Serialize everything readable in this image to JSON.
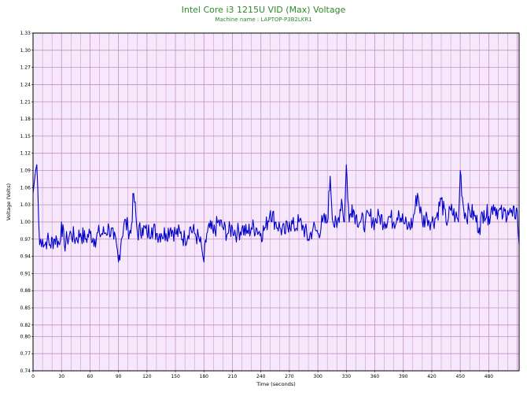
{
  "chart_data": {
    "type": "line",
    "title": "Intel Core i3 1215U VID (Max) Voltage",
    "subtitle": "Machine name : LAPTOP-P3B2LKR1",
    "xlabel": "Time (seconds)",
    "ylabel": "Voltage (Volts)",
    "xlim": [
      0,
      512
    ],
    "ylim": [
      0.74,
      1.33
    ],
    "x_ticks": [
      0,
      30,
      60,
      90,
      120,
      150,
      180,
      210,
      240,
      270,
      300,
      330,
      360,
      390,
      420,
      450,
      480
    ],
    "y_ticks": [
      0.74,
      0.77,
      0.8,
      0.82,
      0.85,
      0.88,
      0.91,
      0.94,
      0.97,
      1.0,
      1.03,
      1.06,
      1.09,
      1.12,
      1.15,
      1.18,
      1.21,
      1.24,
      1.27,
      1.3,
      1.33
    ],
    "y_tick_labels": [
      "0.74",
      "0.77",
      "0.80",
      "0.82",
      "0.85",
      "0.88",
      "0.91",
      "0.94",
      "0.97",
      "1.00",
      "1.03",
      "1.06",
      "1.09",
      "1.12",
      "1.15",
      "1.18",
      "1.21",
      "1.24",
      "1.27",
      "1.30",
      "1.33"
    ],
    "grid": true,
    "background_color": "#f6e8fa",
    "grid_color": "#c48ec8",
    "line_color": "#0000cc",
    "title_color": "#2e8b2e",
    "series": [
      {
        "x": [
          0,
          2,
          4,
          5,
          6,
          7,
          8,
          10,
          12,
          15,
          18,
          22,
          25,
          28,
          30,
          33,
          36,
          40,
          45,
          50,
          55,
          60,
          65,
          70,
          75,
          80,
          85,
          88,
          90,
          93,
          96,
          100,
          103,
          106,
          110,
          115,
          120,
          125,
          130,
          135,
          140,
          145,
          150,
          155,
          160,
          165,
          170,
          175,
          178,
          180,
          183,
          186,
          190,
          195,
          200,
          205,
          210,
          215,
          220,
          225,
          230,
          235,
          240,
          245,
          250,
          255,
          260,
          265,
          270,
          275,
          280,
          285,
          290,
          295,
          300,
          305,
          310,
          313,
          316,
          320,
          325,
          328,
          330,
          333,
          336,
          340,
          345,
          350,
          355,
          360,
          365,
          370,
          375,
          380,
          385,
          390,
          395,
          400,
          405,
          410,
          415,
          420,
          425,
          430,
          435,
          440,
          445,
          448,
          450,
          453,
          456,
          460,
          465,
          470,
          475,
          480,
          485,
          490,
          495,
          500,
          505,
          510,
          512
        ],
        "y": [
          1.05,
          1.08,
          1.1,
          1.06,
          1.0,
          0.96,
          0.97,
          0.97,
          0.96,
          0.97,
          0.96,
          0.97,
          0.97,
          0.96,
          1.0,
          0.96,
          0.97,
          0.98,
          0.97,
          0.98,
          0.97,
          0.98,
          0.97,
          0.98,
          0.98,
          0.99,
          0.97,
          0.96,
          0.93,
          0.97,
          1.0,
          0.99,
          0.98,
          1.05,
          0.98,
          0.99,
          0.98,
          0.99,
          0.98,
          0.98,
          0.98,
          0.99,
          0.98,
          0.98,
          0.97,
          0.99,
          0.98,
          0.97,
          0.95,
          0.93,
          0.98,
          0.99,
          0.98,
          1.0,
          0.99,
          0.98,
          0.99,
          0.98,
          0.99,
          0.98,
          0.99,
          0.99,
          0.98,
          0.99,
          1.02,
          1.0,
          0.99,
          0.98,
          1.0,
          0.99,
          1.0,
          0.99,
          0.97,
          0.99,
          0.98,
          1.0,
          1.0,
          1.08,
          1.0,
          0.99,
          1.04,
          1.0,
          1.1,
          1.0,
          1.03,
          1.01,
          1.0,
          1.0,
          1.01,
          1.0,
          1.01,
          1.0,
          1.01,
          1.0,
          1.02,
          1.0,
          0.99,
          1.0,
          1.05,
          1.0,
          1.01,
          1.0,
          1.01,
          1.04,
          1.0,
          1.02,
          1.01,
          1.0,
          1.09,
          1.03,
          1.01,
          1.02,
          1.01,
          0.99,
          1.02,
          1.01,
          1.03,
          1.02,
          1.01,
          1.02,
          1.01,
          1.02,
          0.96
        ]
      }
    ]
  }
}
